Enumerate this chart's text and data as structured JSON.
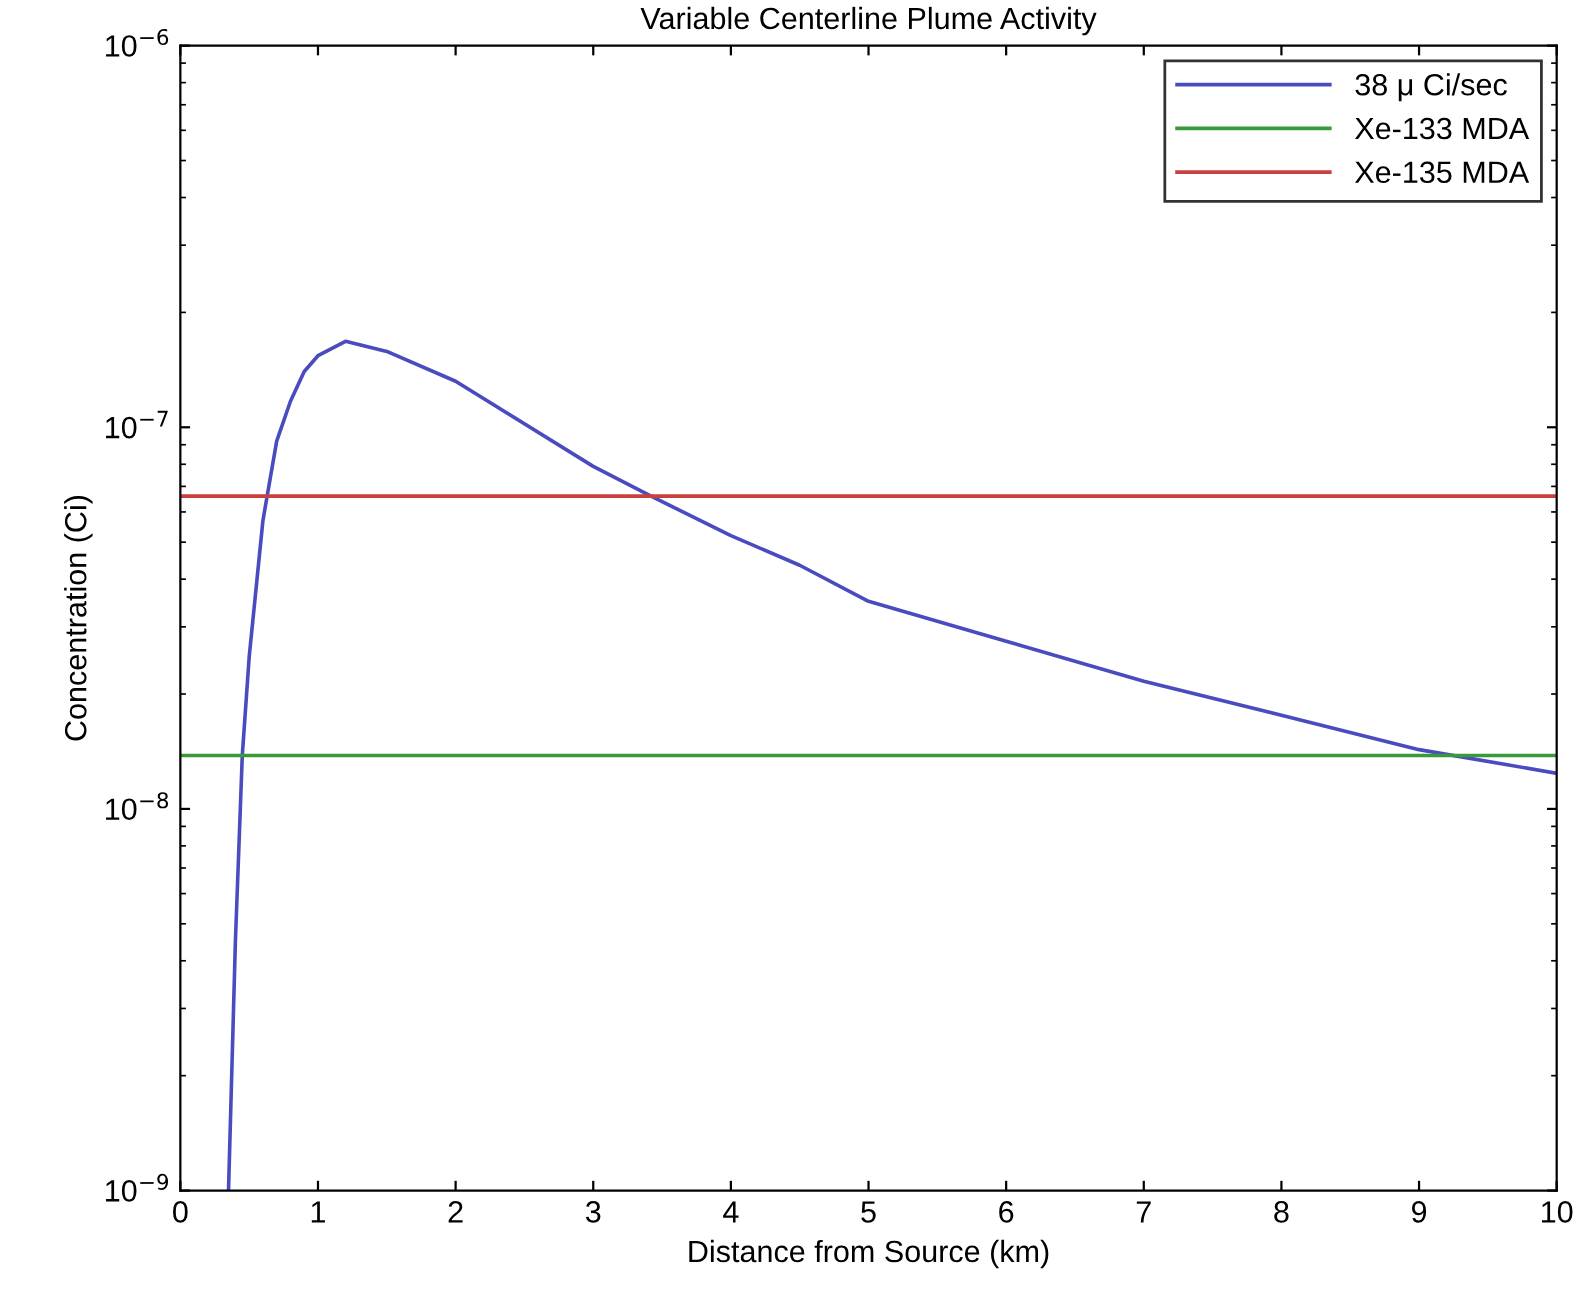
{
  "chart_data": {
    "type": "line",
    "title": "Variable Centerline Plume Activity",
    "xlabel": "Distance from Source (km)",
    "ylabel": "Concentration (Ci)",
    "x": [
      0.35,
      0.4,
      0.45,
      0.5,
      0.6,
      0.7,
      0.8,
      0.9,
      1.0,
      1.2,
      1.5,
      2.0,
      3.0,
      3.42,
      4.0,
      4.5,
      5.0,
      6.0,
      7.0,
      8.0,
      9.0,
      10.0
    ],
    "series": [
      {
        "name": "38 μ Ci/sec",
        "color": "#4b4bc0",
        "values": [
          1e-09,
          4.5e-09,
          1.38e-08,
          2.5e-08,
          5.7e-08,
          9.2e-08,
          1.17e-07,
          1.4e-07,
          1.54e-07,
          1.68e-07,
          1.58e-07,
          1.32e-07,
          7.9e-08,
          6.6e-08,
          5.2e-08,
          4.35e-08,
          3.5e-08,
          2.75e-08,
          2.16e-08,
          1.76e-08,
          1.43e-08,
          1.24e-08
        ]
      }
    ],
    "ref_lines": [
      {
        "axis": "y",
        "value": 1.38e-08,
        "label": "Xe-133 MDA",
        "color": "#3a9a3a"
      },
      {
        "axis": "y",
        "value": 6.6e-08,
        "label": "Xe-135 MDA",
        "color": "#c84040"
      }
    ],
    "log": "y",
    "xlim": [
      0,
      10
    ],
    "xticks": [
      0,
      1,
      2,
      3,
      4,
      5,
      6,
      7,
      8,
      9,
      10
    ],
    "ylim": [
      1e-09,
      1e-06
    ],
    "yticks": [
      {
        "value": 1e-09,
        "label": "10$^{−9}$"
      },
      {
        "value": 1e-08,
        "label": "10$^{−8}$"
      },
      {
        "value": 1e-07,
        "label": "10$^{−7}$"
      },
      {
        "value": 1e-06,
        "label": "10$^{−6}$"
      }
    ],
    "legend": "top right",
    "grid": false
  }
}
